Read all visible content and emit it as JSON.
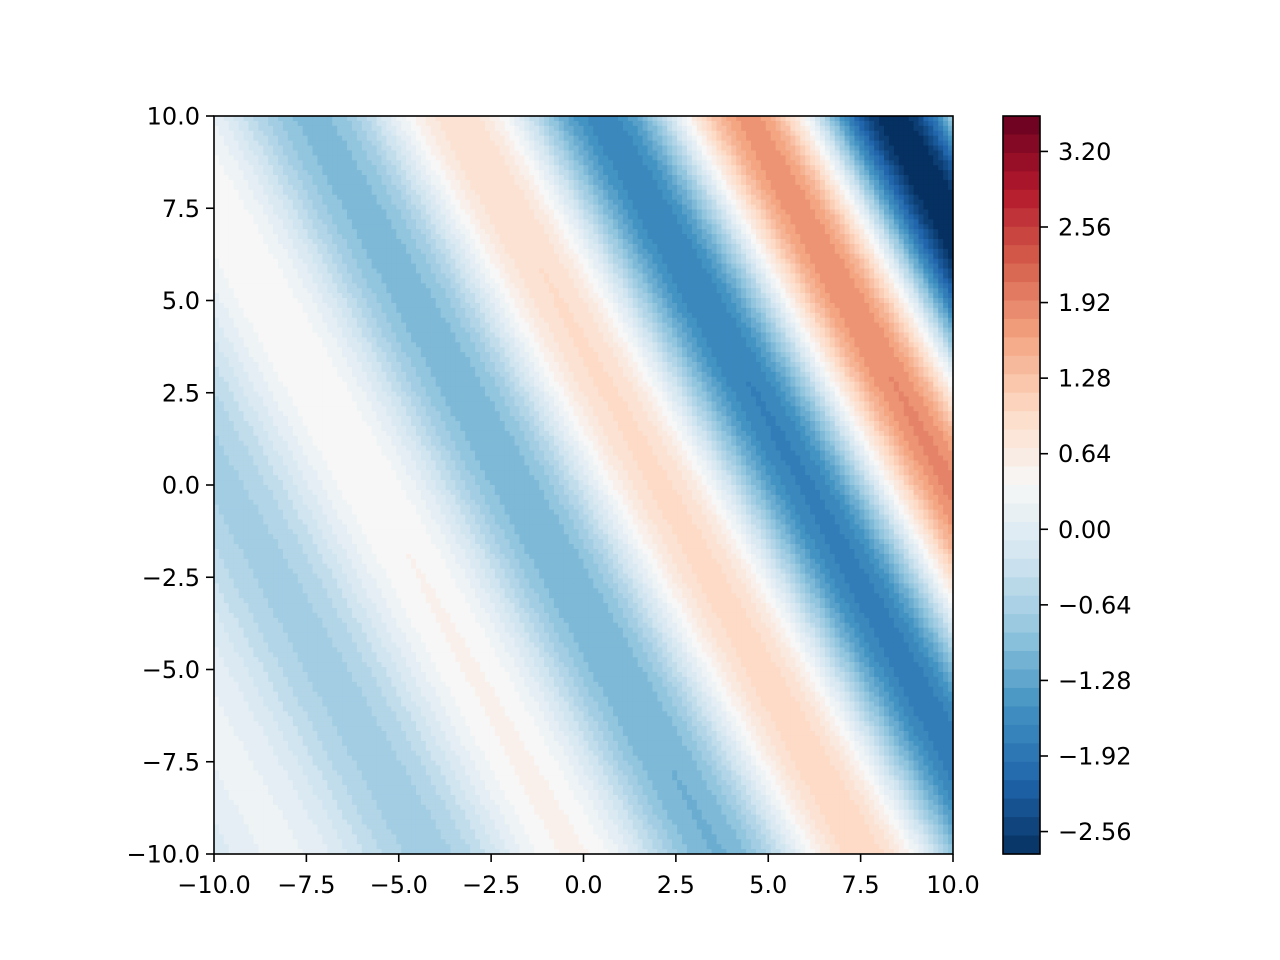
{
  "chart_data": {
    "type": "heatmap",
    "style": "filled-contour",
    "title": "",
    "xlabel": "",
    "ylabel": "",
    "xlim": [
      -10,
      10
    ],
    "ylim": [
      -10,
      10
    ],
    "x_ticks": [
      "−10.0",
      "−7.5",
      "−5.0",
      "−2.5",
      "0.0",
      "2.5",
      "5.0",
      "7.5",
      "10.0"
    ],
    "y_ticks": [
      "−10.0",
      "−7.5",
      "−5.0",
      "−2.5",
      "0.0",
      "2.5",
      "5.0",
      "7.5",
      "10.0"
    ],
    "x_tick_values": [
      -10,
      -7.5,
      -5,
      -2.5,
      0,
      2.5,
      5,
      7.5,
      10
    ],
    "y_tick_values": [
      -10,
      -7.5,
      -5,
      -2.5,
      0,
      2.5,
      5,
      7.5,
      10
    ],
    "colormap": "RdBu_r",
    "colormap_stops": [
      "#053061",
      "#2166ac",
      "#4393c3",
      "#92c5de",
      "#d1e5f0",
      "#f7f7f7",
      "#fddbc7",
      "#f4a582",
      "#d6604d",
      "#b2182b",
      "#67001f"
    ],
    "color_range": [
      -2.75,
      3.5
    ],
    "colorbar_ticks": [
      "3.20",
      "2.56",
      "1.92",
      "1.28",
      "0.64",
      "0.00",
      "−0.64",
      "−1.28",
      "−1.92",
      "−2.56"
    ],
    "colorbar_tick_values": [
      3.2,
      2.56,
      1.92,
      1.28,
      0.64,
      0.0,
      -0.64,
      -1.28,
      -1.92,
      -2.56
    ],
    "field": {
      "description": "z = sin(0.8*(x + 0.55*y)) * exp(0.075*x + 0.035*y) - 0.2",
      "bands_along_direction": "stripes run diagonally from upper-left to lower-right; amplitude grows toward upper-right"
    },
    "grid": false,
    "legend": "none"
  }
}
